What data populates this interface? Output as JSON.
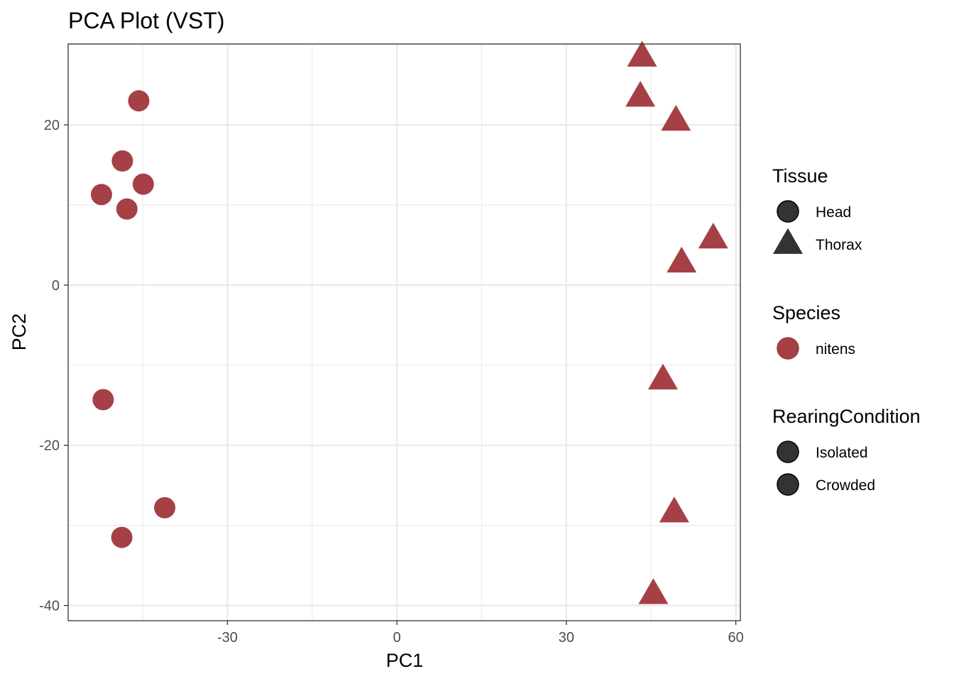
{
  "chart_data": {
    "type": "scatter",
    "title": "PCA Plot (VST)",
    "xlabel": "PC1",
    "ylabel": "PC2",
    "xlim": [
      -58.2,
      60.8
    ],
    "ylim": [
      -41.9,
      30.1
    ],
    "x_major_ticks": [
      -30,
      0,
      30,
      60
    ],
    "x_major_labels": [
      "-30",
      "0",
      "30",
      "60"
    ],
    "x_minor_ticks": [
      -45,
      -15,
      15,
      45
    ],
    "y_major_ticks": [
      -40,
      -20,
      0,
      20
    ],
    "y_major_labels": [
      "-40",
      "-20",
      "0",
      "20"
    ],
    "y_minor_ticks": [
      -30,
      -10,
      10,
      30
    ],
    "grid": true,
    "point_color": "#a0363d",
    "series": [
      {
        "name": "Head",
        "shape": "circle",
        "species": "nitens",
        "points": [
          {
            "x": -45.7,
            "y": 23.0
          },
          {
            "x": -48.6,
            "y": 15.5
          },
          {
            "x": -44.9,
            "y": 12.6
          },
          {
            "x": -52.3,
            "y": 11.3
          },
          {
            "x": -47.8,
            "y": 9.5
          },
          {
            "x": -52.0,
            "y": -14.3
          },
          {
            "x": -41.1,
            "y": -27.8
          },
          {
            "x": -48.7,
            "y": -31.5
          }
        ]
      },
      {
        "name": "Thorax",
        "shape": "triangle",
        "species": "nitens",
        "points": [
          {
            "x": 43.4,
            "y": 28.5
          },
          {
            "x": 43.1,
            "y": 23.5
          },
          {
            "x": 49.4,
            "y": 20.5
          },
          {
            "x": 56.0,
            "y": 5.8
          },
          {
            "x": 50.4,
            "y": 2.8
          },
          {
            "x": 47.1,
            "y": -11.8
          },
          {
            "x": 49.1,
            "y": -28.4
          },
          {
            "x": 45.4,
            "y": -38.6
          }
        ]
      }
    ],
    "legend": {
      "placement": "right",
      "groups": [
        {
          "title": "Tissue",
          "items": [
            {
              "label": "Head",
              "shape": "circle",
              "color": "#333333"
            },
            {
              "label": "Thorax",
              "shape": "triangle",
              "color": "#333333"
            }
          ]
        },
        {
          "title": "Species",
          "items": [
            {
              "label": "nitens",
              "shape": "circle",
              "color": "#a0363d"
            }
          ]
        },
        {
          "title": "RearingCondition",
          "items": [
            {
              "label": "Isolated",
              "shape": "circle",
              "color": "#333333"
            },
            {
              "label": "Crowded",
              "shape": "circle",
              "color": "#333333"
            }
          ]
        }
      ]
    }
  }
}
